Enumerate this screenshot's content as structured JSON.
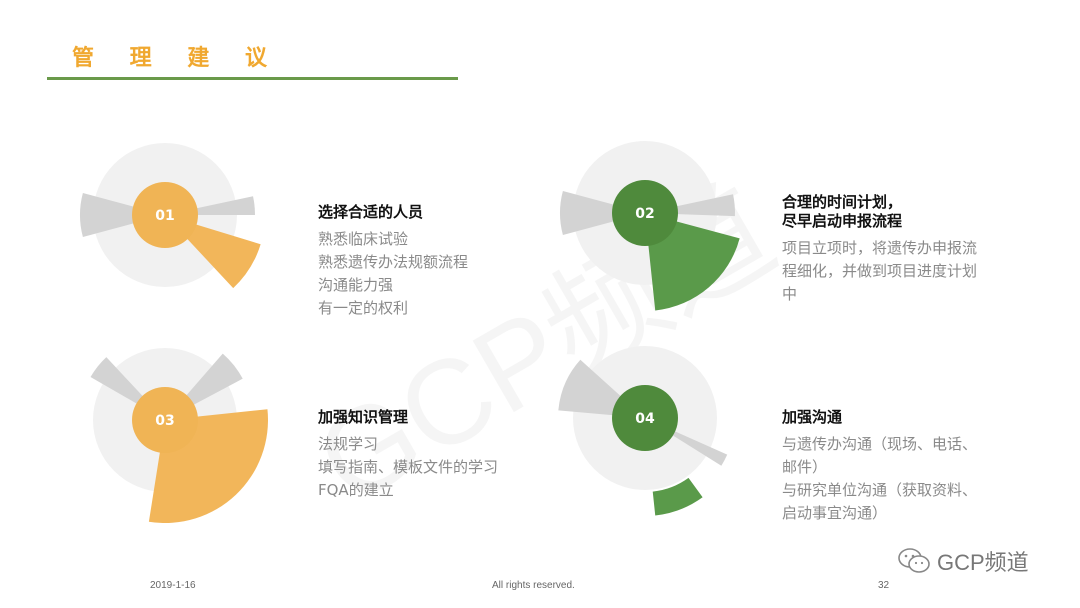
{
  "slide": {
    "title": "管 理 建 议",
    "watermark": "GCP频道",
    "colors": {
      "orange": "#f2b65a",
      "green": "#5a9a4a",
      "grey": "#d3d3d3",
      "title": "#f0a830",
      "line": "#6a9a4a"
    }
  },
  "items": [
    {
      "number": "01",
      "heading": [
        "选择合适的人员"
      ],
      "lines": [
        "熟悉临床试验",
        "熟悉遗传办法规额流程",
        "沟通能力强",
        "有一定的权利"
      ]
    },
    {
      "number": "02",
      "heading": [
        "合理的时间计划，",
        "尽早启动申报流程"
      ],
      "lines": [
        "项目立项时，将遗传办申报流",
        "程细化，并做到项目进度计划",
        "中"
      ]
    },
    {
      "number": "03",
      "heading": [
        "加强知识管理"
      ],
      "lines": [
        "法规学习",
        "填写指南、模板文件的学习",
        "FQA的建立"
      ]
    },
    {
      "number": "04",
      "heading": [
        "加强沟通"
      ],
      "lines": [
        "与遗传办沟通（现场、电话、",
        "邮件）",
        "与研究单位沟通（获取资料、",
        "启动事宜沟通）"
      ]
    }
  ],
  "footer": {
    "date": "2019-1-16",
    "rights": "All rights reserved.",
    "page": "32",
    "brand": "GCP频道",
    "brand_icon": "wechat-icon"
  }
}
